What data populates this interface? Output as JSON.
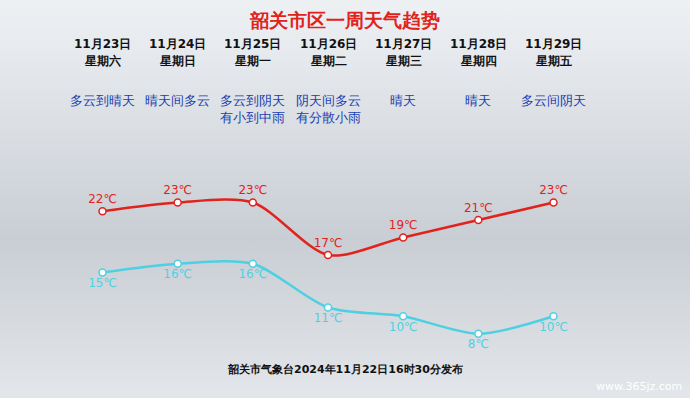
{
  "chart_data": {
    "type": "line",
    "title": "韶关市区一周天气趋势",
    "categories": [
      "11月23日",
      "11月24日",
      "11月25日",
      "11月26日",
      "11月27日",
      "11月28日",
      "11月29日"
    ],
    "weekdays": [
      "星期六",
      "星期日",
      "星期一",
      "星期二",
      "星期三",
      "星期四",
      "星期五"
    ],
    "weather": [
      [
        "多云到晴天"
      ],
      [
        "晴天间多云"
      ],
      [
        "多云到阴天",
        "有小到中雨"
      ],
      [
        "阴天间多云",
        "有分散小雨"
      ],
      [
        "晴天"
      ],
      [
        "晴天"
      ],
      [
        "多云间阴天"
      ]
    ],
    "series": [
      {
        "color": "#e0231d",
        "values": [
          22,
          23,
          23,
          17,
          19,
          21,
          23
        ],
        "value_labels": [
          "22℃",
          "23℃",
          "23℃",
          "17℃",
          "19℃",
          "21℃",
          "23℃"
        ],
        "marker": "circle",
        "line_style": "smooth"
      },
      {
        "color": "#4fd0e2",
        "values": [
          15,
          16,
          16,
          11,
          10,
          8,
          10
        ],
        "value_labels": [
          "15℃",
          "16℃",
          "16℃",
          "11℃",
          "10℃",
          "8℃",
          "10℃"
        ],
        "marker": "circle",
        "line_style": "smooth"
      }
    ],
    "ylim": [
      5,
      29
    ],
    "yticks": [],
    "grid": false,
    "data_labels": true,
    "tick_labels": false,
    "footer": "韶关市气象台2024年11月22日16时30分发布",
    "watermark": "www.365jz.com"
  }
}
